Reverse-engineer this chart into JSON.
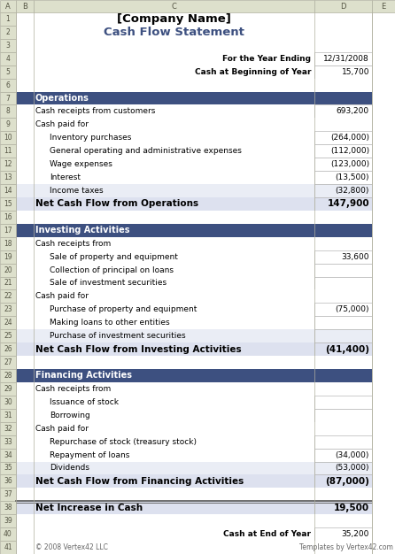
{
  "title1": "[Company Name]",
  "title2": "Cash Flow Statement",
  "header_label1": "For the Year Ending",
  "header_val1": "12/31/2008",
  "header_label2": "Cash at Beginning of Year",
  "header_val2": "15,700",
  "section_bg": "#3d5080",
  "section_text_color": "#ffffff",
  "alt_row_bg": "#eaedf5",
  "white_bg": "#ffffff",
  "title1_color": "#000000",
  "title2_color": "#3d5080",
  "net_row_bg": "#dde1ef",
  "col_header_bg": "#dde0cc",
  "col_border": "#b0b0a0",
  "cell_border": "#b8b8b8",
  "rows": [
    {
      "type": "section",
      "row": 7,
      "label": "Operations"
    },
    {
      "type": "data",
      "row": 8,
      "indent": 0,
      "label": "Cash receipts from customers",
      "value": "693,200",
      "bg": "white",
      "val_box": true
    },
    {
      "type": "data",
      "row": 9,
      "indent": 0,
      "label": "Cash paid for",
      "value": "",
      "bg": "white",
      "val_box": false
    },
    {
      "type": "data",
      "row": 10,
      "indent": 1,
      "label": "Inventory purchases",
      "value": "(264,000)",
      "bg": "white",
      "val_box": true
    },
    {
      "type": "data",
      "row": 11,
      "indent": 1,
      "label": "General operating and administrative expenses",
      "value": "(112,000)",
      "bg": "white",
      "val_box": true
    },
    {
      "type": "data",
      "row": 12,
      "indent": 1,
      "label": "Wage expenses",
      "value": "(123,000)",
      "bg": "white",
      "val_box": true
    },
    {
      "type": "data",
      "row": 13,
      "indent": 1,
      "label": "Interest",
      "value": "(13,500)",
      "bg": "white",
      "val_box": true
    },
    {
      "type": "data",
      "row": 14,
      "indent": 1,
      "label": "Income taxes",
      "value": "(32,800)",
      "bg": "alt",
      "val_box": true
    },
    {
      "type": "net",
      "row": 15,
      "label": "Net Cash Flow from Operations",
      "value": "147,900"
    },
    {
      "type": "blank",
      "row": 16
    },
    {
      "type": "section",
      "row": 17,
      "label": "Investing Activities"
    },
    {
      "type": "data",
      "row": 18,
      "indent": 0,
      "label": "Cash receipts from",
      "value": "",
      "bg": "white",
      "val_box": false
    },
    {
      "type": "data",
      "row": 19,
      "indent": 1,
      "label": "Sale of property and equipment",
      "value": "33,600",
      "bg": "white",
      "val_box": true
    },
    {
      "type": "data",
      "row": 20,
      "indent": 1,
      "label": "Collection of principal on loans",
      "value": "",
      "bg": "white",
      "val_box": true
    },
    {
      "type": "data",
      "row": 21,
      "indent": 1,
      "label": "Sale of investment securities",
      "value": "",
      "bg": "white",
      "val_box": true
    },
    {
      "type": "data",
      "row": 22,
      "indent": 0,
      "label": "Cash paid for",
      "value": "",
      "bg": "white",
      "val_box": false
    },
    {
      "type": "data",
      "row": 23,
      "indent": 1,
      "label": "Purchase of property and equipment",
      "value": "(75,000)",
      "bg": "white",
      "val_box": true
    },
    {
      "type": "data",
      "row": 24,
      "indent": 1,
      "label": "Making loans to other entities",
      "value": "",
      "bg": "white",
      "val_box": true
    },
    {
      "type": "data",
      "row": 25,
      "indent": 1,
      "label": "Purchase of investment securities",
      "value": "",
      "bg": "alt",
      "val_box": true
    },
    {
      "type": "net",
      "row": 26,
      "label": "Net Cash Flow from Investing Activities",
      "value": "(41,400)"
    },
    {
      "type": "blank",
      "row": 27
    },
    {
      "type": "section",
      "row": 28,
      "label": "Financing Activities"
    },
    {
      "type": "data",
      "row": 29,
      "indent": 0,
      "label": "Cash receipts from",
      "value": "",
      "bg": "white",
      "val_box": false
    },
    {
      "type": "data",
      "row": 30,
      "indent": 1,
      "label": "Issuance of stock",
      "value": "",
      "bg": "white",
      "val_box": true
    },
    {
      "type": "data",
      "row": 31,
      "indent": 1,
      "label": "Borrowing",
      "value": "",
      "bg": "white",
      "val_box": true
    },
    {
      "type": "data",
      "row": 32,
      "indent": 0,
      "label": "Cash paid for",
      "value": "",
      "bg": "white",
      "val_box": false
    },
    {
      "type": "data",
      "row": 33,
      "indent": 1,
      "label": "Repurchase of stock (treasury stock)",
      "value": "",
      "bg": "white",
      "val_box": true
    },
    {
      "type": "data",
      "row": 34,
      "indent": 1,
      "label": "Repayment of loans",
      "value": "(34,000)",
      "bg": "white",
      "val_box": true
    },
    {
      "type": "data",
      "row": 35,
      "indent": 1,
      "label": "Dividends",
      "value": "(53,000)",
      "bg": "alt",
      "val_box": true
    },
    {
      "type": "net",
      "row": 36,
      "label": "Net Cash Flow from Financing Activities",
      "value": "(87,000)"
    },
    {
      "type": "blank",
      "row": 37
    },
    {
      "type": "net_increase",
      "row": 38,
      "label": "Net Increase in Cash",
      "value": "19,500"
    },
    {
      "type": "blank",
      "row": 39
    },
    {
      "type": "footer",
      "row": 40,
      "label1": "Cash at End of Year",
      "val1": "35,200"
    },
    {
      "type": "copyright",
      "row": 41,
      "left": "© 2008 Vertex42 LLC",
      "right": "Templates by Vertex42.com"
    }
  ]
}
